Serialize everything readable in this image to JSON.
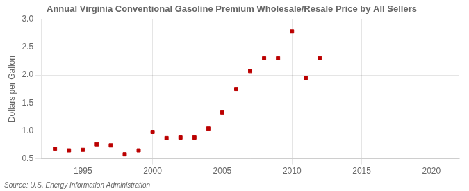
{
  "chart_data": {
    "type": "scatter",
    "title": "Annual Virginia Conventional Gasoline Premium Wholesale/Resale Price by All Sellers",
    "ylabel": "Dollars per Gallon",
    "annotation": "Source: U.S. Energy Information Administration",
    "x": [
      1993,
      1994,
      1995,
      1996,
      1997,
      1998,
      1999,
      2000,
      2001,
      2002,
      2003,
      2004,
      2005,
      2006,
      2007,
      2008,
      2009,
      2010,
      2011,
      2012
    ],
    "values": [
      0.68,
      0.65,
      0.66,
      0.76,
      0.74,
      0.58,
      0.65,
      0.98,
      0.87,
      0.88,
      0.88,
      1.04,
      1.33,
      1.75,
      2.07,
      2.3,
      2.3,
      2.78,
      1.95,
      2.3
    ],
    "color": "#bb0000",
    "marker": "square",
    "xlim": [
      1992,
      2022
    ],
    "xticks": [
      1995,
      2000,
      2005,
      2010,
      2015,
      2020
    ],
    "ylim": [
      0.5,
      3.0
    ],
    "yticks": [
      0.5,
      {
        "value": 1.0,
        "label": "1.0"
      },
      1.5,
      {
        "value": 2.0,
        "label": "2.0"
      },
      2.5,
      {
        "value": 3.0,
        "label": "3.0"
      }
    ],
    "grid": true
  }
}
